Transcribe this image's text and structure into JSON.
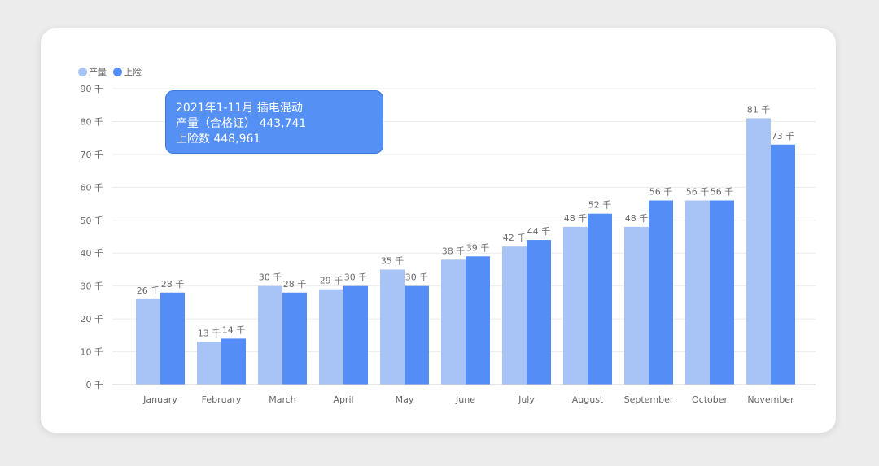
{
  "chart_data": {
    "type": "bar",
    "categories": [
      "January",
      "February",
      "March",
      "April",
      "May",
      "June",
      "July",
      "August",
      "September",
      "October",
      "November"
    ],
    "series": [
      {
        "name": "产量",
        "color": "#a8c4f7",
        "values": [
          26,
          13,
          30,
          29,
          35,
          38,
          42,
          48,
          48,
          56,
          81
        ],
        "labels": [
          "26 千",
          "13 千",
          "30 千",
          "29 千",
          "35 千",
          "38 千",
          "42 千",
          "48 千",
          "48 千",
          "56 千",
          "81 千"
        ]
      },
      {
        "name": "上险",
        "color": "#548df5",
        "values": [
          28,
          14,
          28,
          30,
          30,
          39,
          44,
          52,
          56,
          56,
          73
        ],
        "labels": [
          "28 千",
          "14 千",
          "28 千",
          "30 千",
          "30 千",
          "39 千",
          "44 千",
          "52 千",
          "56 千",
          "56 千",
          "73 千"
        ]
      }
    ],
    "yticks": [
      "0 千",
      "10 千",
      "20 千",
      "30 千",
      "40 千",
      "50 千",
      "60 千",
      "70 千",
      "80 千",
      "90 千"
    ],
    "ylim": [
      0,
      90
    ],
    "grid": true,
    "legend_position": "top-left"
  },
  "tooltip": {
    "line1": "2021年1-11月 插电混动",
    "line2": "产量（合格证） 443,741",
    "line3": "上险数 448,961"
  }
}
